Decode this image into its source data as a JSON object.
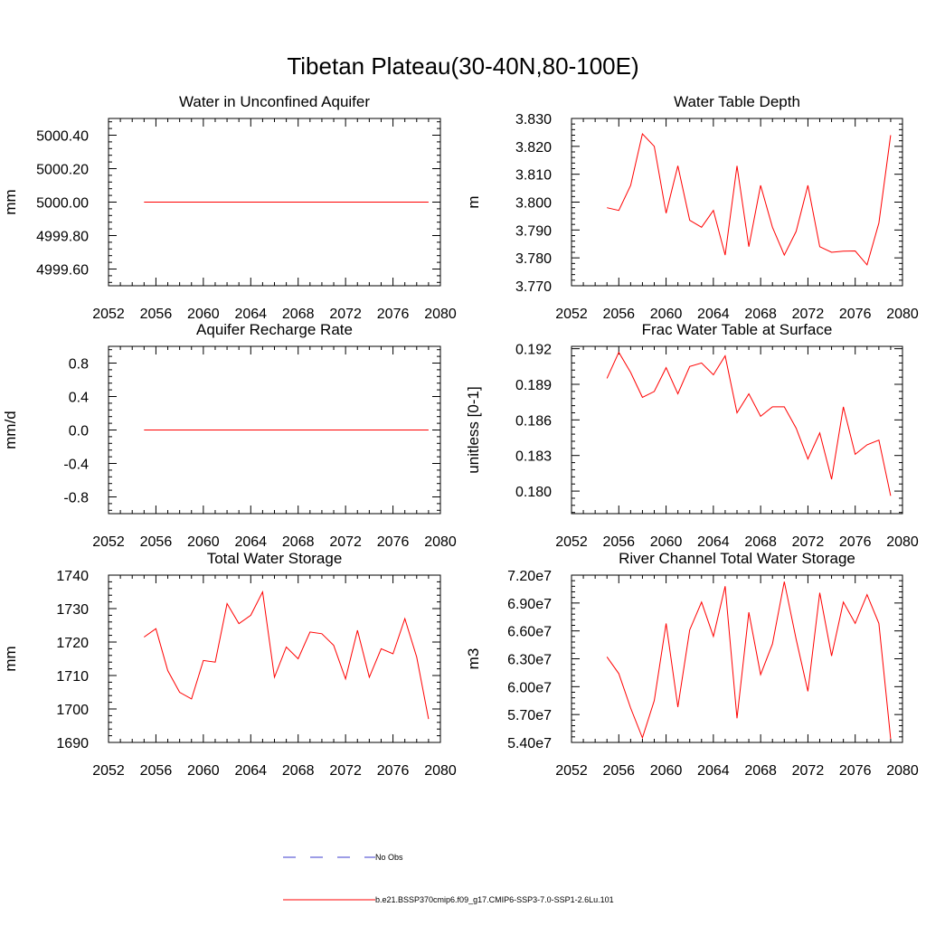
{
  "figure": {
    "title": "Tibetan Plateau(30-40N,80-100E)"
  },
  "legend": {
    "entries": [
      {
        "label": "No Obs",
        "color": "#3b3bcc",
        "style": "dashed"
      },
      {
        "label": "b.e21.BSSP370cmip6.f09_g17.CMIP6-SSP3-7.0-SSP1-2.6Lu.101",
        "color": "#ff0000",
        "style": "solid"
      }
    ]
  },
  "chart_data": [
    {
      "type": "line",
      "title": "Water in Unconfined Aquifer",
      "ylabel": "mm",
      "xlim": [
        2052,
        2080
      ],
      "ylim": [
        4999.5,
        5000.5
      ],
      "x_ticks": [
        "2052",
        "2056",
        "2060",
        "2064",
        "2068",
        "2072",
        "2076",
        "2080"
      ],
      "y_ticks": [
        {
          "value": 4999.6,
          "label": "4999.60"
        },
        {
          "value": 4999.8,
          "label": "4999.80"
        },
        {
          "value": 5000.0,
          "label": "5000.00"
        },
        {
          "value": 5000.2,
          "label": "5000.20"
        },
        {
          "value": 5000.4,
          "label": "5000.40"
        }
      ],
      "series": [
        {
          "color": "#ff0000",
          "x": [
            2055,
            2056,
            2057,
            2058,
            2059,
            2060,
            2061,
            2062,
            2063,
            2064,
            2065,
            2066,
            2067,
            2068,
            2069,
            2070,
            2071,
            2072,
            2073,
            2074,
            2075,
            2076,
            2077,
            2078,
            2079
          ],
          "y": [
            5000,
            5000,
            5000,
            5000,
            5000,
            5000,
            5000,
            5000,
            5000,
            5000,
            5000,
            5000,
            5000,
            5000,
            5000,
            5000,
            5000,
            5000,
            5000,
            5000,
            5000,
            5000,
            5000,
            5000,
            5000
          ]
        }
      ]
    },
    {
      "type": "line",
      "title": "Water Table Depth",
      "ylabel": "m",
      "xlim": [
        2052,
        2080
      ],
      "ylim": [
        3.77,
        3.83
      ],
      "x_ticks": [
        "2052",
        "2056",
        "2060",
        "2064",
        "2068",
        "2072",
        "2076",
        "2080"
      ],
      "y_ticks": [
        {
          "value": 3.77,
          "label": "3.770"
        },
        {
          "value": 3.78,
          "label": "3.780"
        },
        {
          "value": 3.79,
          "label": "3.790"
        },
        {
          "value": 3.8,
          "label": "3.800"
        },
        {
          "value": 3.81,
          "label": "3.810"
        },
        {
          "value": 3.82,
          "label": "3.820"
        },
        {
          "value": 3.83,
          "label": "3.830"
        }
      ],
      "series": [
        {
          "color": "#ff0000",
          "x": [
            2055,
            2056,
            2057,
            2058,
            2059,
            2060,
            2061,
            2062,
            2063,
            2064,
            2065,
            2066,
            2067,
            2068,
            2069,
            2070,
            2071,
            2072,
            2073,
            2074,
            2075,
            2076,
            2077,
            2078,
            2079
          ],
          "y": [
            3.798,
            3.797,
            3.806,
            3.8245,
            3.82,
            3.796,
            3.813,
            3.7935,
            3.791,
            3.797,
            3.781,
            3.813,
            3.784,
            3.806,
            3.791,
            3.781,
            3.7895,
            3.806,
            3.784,
            3.782,
            3.7824,
            3.7825,
            3.7775,
            3.7925,
            3.824
          ]
        }
      ]
    },
    {
      "type": "line",
      "title": "Aquifer Recharge Rate",
      "ylabel": "mm/d",
      "xlim": [
        2052,
        2080
      ],
      "ylim": [
        -1.0,
        1.0
      ],
      "x_ticks": [
        "2052",
        "2056",
        "2060",
        "2064",
        "2068",
        "2072",
        "2076",
        "2080"
      ],
      "y_ticks": [
        {
          "value": -0.8,
          "label": "-0.8"
        },
        {
          "value": -0.4,
          "label": "-0.4"
        },
        {
          "value": 0.0,
          "label": "0.0"
        },
        {
          "value": 0.4,
          "label": "0.4"
        },
        {
          "value": 0.8,
          "label": "0.8"
        }
      ],
      "series": [
        {
          "color": "#ff0000",
          "x": [
            2055,
            2056,
            2057,
            2058,
            2059,
            2060,
            2061,
            2062,
            2063,
            2064,
            2065,
            2066,
            2067,
            2068,
            2069,
            2070,
            2071,
            2072,
            2073,
            2074,
            2075,
            2076,
            2077,
            2078,
            2079
          ],
          "y": [
            0,
            0,
            0,
            0,
            0,
            0,
            0,
            0,
            0,
            0,
            0,
            0,
            0,
            0,
            0,
            0,
            0,
            0,
            0,
            0,
            0,
            0,
            0,
            0,
            0
          ]
        }
      ]
    },
    {
      "type": "line",
      "title": "Frac Water Table at Surface",
      "ylabel": "unitless [0-1]",
      "xlim": [
        2052,
        2080
      ],
      "ylim": [
        0.1781,
        0.1922
      ],
      "x_ticks": [
        "2052",
        "2056",
        "2060",
        "2064",
        "2068",
        "2072",
        "2076",
        "2080"
      ],
      "y_ticks": [
        {
          "value": 0.18,
          "label": "0.180"
        },
        {
          "value": 0.183,
          "label": "0.183"
        },
        {
          "value": 0.186,
          "label": "0.186"
        },
        {
          "value": 0.189,
          "label": "0.189"
        },
        {
          "value": 0.192,
          "label": "0.192"
        }
      ],
      "series": [
        {
          "color": "#ff0000",
          "x": [
            2055,
            2056,
            2057,
            2058,
            2059,
            2060,
            2061,
            2062,
            2063,
            2064,
            2065,
            2066,
            2067,
            2068,
            2069,
            2070,
            2071,
            2072,
            2073,
            2074,
            2075,
            2076,
            2077,
            2078,
            2079
          ],
          "y": [
            0.1895,
            0.1917,
            0.19,
            0.1879,
            0.1884,
            0.1904,
            0.1882,
            0.1905,
            0.1908,
            0.1898,
            0.1914,
            0.1866,
            0.1882,
            0.1863,
            0.1871,
            0.1871,
            0.1853,
            0.1827,
            0.1849,
            0.181,
            0.1871,
            0.1831,
            0.1839,
            0.1843,
            0.1796
          ]
        }
      ]
    },
    {
      "type": "line",
      "title": "Total Water Storage",
      "ylabel": "mm",
      "xlim": [
        2052,
        2080
      ],
      "ylim": [
        1690,
        1740
      ],
      "x_ticks": [
        "2052",
        "2056",
        "2060",
        "2064",
        "2068",
        "2072",
        "2076",
        "2080"
      ],
      "y_ticks": [
        {
          "value": 1690,
          "label": "1690"
        },
        {
          "value": 1700,
          "label": "1700"
        },
        {
          "value": 1710,
          "label": "1710"
        },
        {
          "value": 1720,
          "label": "1720"
        },
        {
          "value": 1730,
          "label": "1730"
        },
        {
          "value": 1740,
          "label": "1740"
        }
      ],
      "series": [
        {
          "color": "#ff0000",
          "x": [
            2055,
            2056,
            2057,
            2058,
            2059,
            2060,
            2061,
            2062,
            2063,
            2064,
            2065,
            2066,
            2067,
            2068,
            2069,
            2070,
            2071,
            2072,
            2073,
            2074,
            2075,
            2076,
            2077,
            2078,
            2079
          ],
          "y": [
            1721.5,
            1724,
            1711.5,
            1705,
            1703,
            1714.5,
            1714,
            1731.5,
            1725.5,
            1728,
            1735,
            1709.5,
            1718.5,
            1715,
            1723,
            1722.5,
            1719,
            1709,
            1723.5,
            1709.5,
            1718,
            1716.5,
            1727,
            1715.5,
            1697
          ]
        }
      ]
    },
    {
      "type": "line",
      "title": "River Channel Total Water Storage",
      "ylabel": "m3",
      "xlim": [
        2052,
        2080
      ],
      "ylim": [
        54000000.0,
        72000000.0
      ],
      "x_ticks": [
        "2052",
        "2056",
        "2060",
        "2064",
        "2068",
        "2072",
        "2076",
        "2080"
      ],
      "y_ticks": [
        {
          "value": 54000000.0,
          "label": "5.40e7"
        },
        {
          "value": 57000000.0,
          "label": "5.70e7"
        },
        {
          "value": 60000000.0,
          "label": "6.00e7"
        },
        {
          "value": 63000000.0,
          "label": "6.30e7"
        },
        {
          "value": 66000000.0,
          "label": "6.60e7"
        },
        {
          "value": 69000000.0,
          "label": "6.90e7"
        },
        {
          "value": 72000000.0,
          "label": "7.20e7"
        }
      ],
      "series": [
        {
          "color": "#ff0000",
          "x": [
            2055,
            2056,
            2057,
            2058,
            2059,
            2060,
            2061,
            2062,
            2063,
            2064,
            2065,
            2066,
            2067,
            2068,
            2069,
            2070,
            2071,
            2072,
            2073,
            2074,
            2075,
            2076,
            2077,
            2078,
            2079
          ],
          "y": [
            63200000.0,
            61400000.0,
            57700000.0,
            54500000.0,
            58500000.0,
            66800000.0,
            57800000.0,
            66100000.0,
            69100000.0,
            65400000.0,
            70800000.0,
            56600000.0,
            68000000.0,
            61300000.0,
            64600000.0,
            71300000.0,
            65100000.0,
            59500000.0,
            70100000.0,
            63300000.0,
            69100000.0,
            66800000.0,
            69900000.0,
            66800000.0,
            54400000.0
          ]
        }
      ]
    }
  ]
}
